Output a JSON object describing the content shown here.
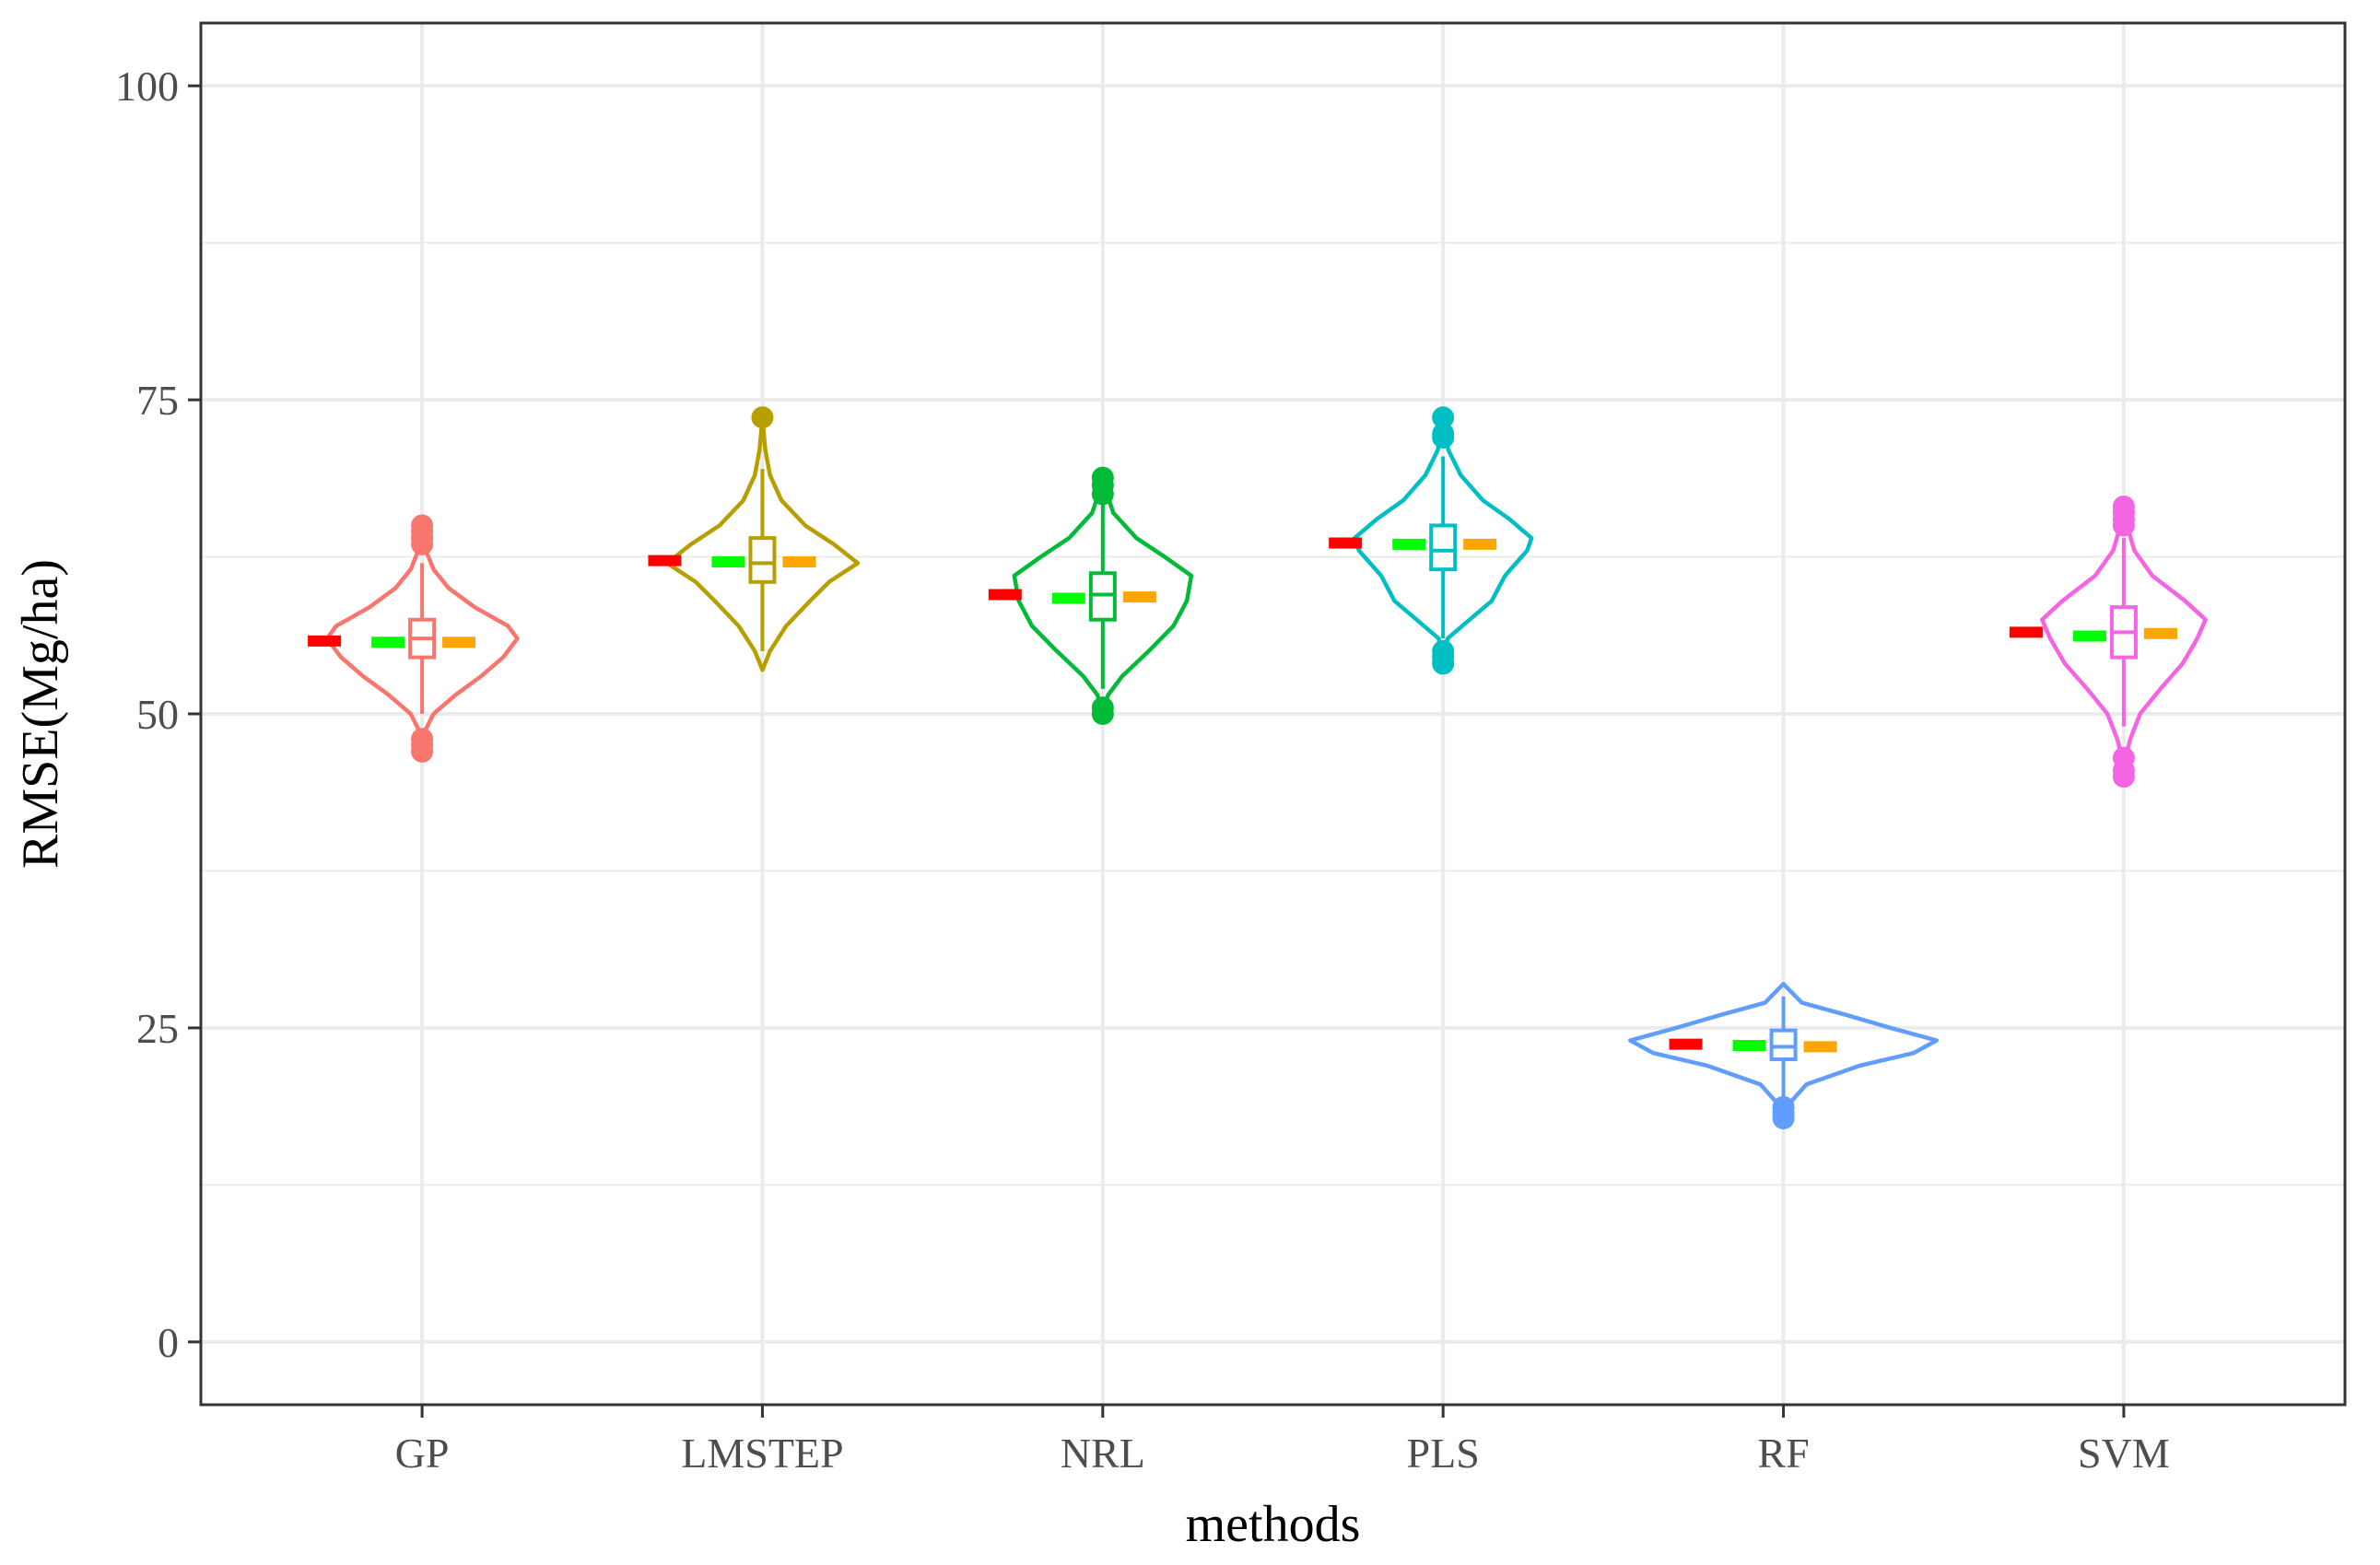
{
  "chart_data": {
    "type": "violin",
    "title": "",
    "xlabel": "methods",
    "ylabel": "RMSE(Mg/ha)",
    "ylim": [
      -5,
      105
    ],
    "yticks": [
      0,
      25,
      50,
      75,
      100
    ],
    "grid": true,
    "categories": [
      "GP",
      "LMSTEP",
      "NRL",
      "PLS",
      "RF",
      "SVM"
    ],
    "series": [
      {
        "name": "GP",
        "color": "#F8766D",
        "min": 47.3,
        "max": 64.8,
        "width": 0.28,
        "density": [
          [
            47.3,
            0
          ],
          [
            48.5,
            0.02
          ],
          [
            50,
            0.12
          ],
          [
            51.5,
            0.35
          ],
          [
            53,
            0.62
          ],
          [
            54.5,
            0.85
          ],
          [
            56,
            1.0
          ],
          [
            57,
            0.9
          ],
          [
            58.5,
            0.55
          ],
          [
            60,
            0.28
          ],
          [
            61.5,
            0.12
          ],
          [
            63,
            0.04
          ],
          [
            64.8,
            0
          ]
        ],
        "q1": 54.5,
        "median": 56.0,
        "q3": 57.5,
        "whisker_low": 50.0,
        "whisker_high": 62.0,
        "outliers": [
          47.0,
          47.5,
          48.0,
          63.5,
          64.0,
          64.5,
          65.0
        ],
        "mean": 55.7,
        "ref_red": 55.8,
        "ref_green": 55.7,
        "ref_orange": 55.7
      },
      {
        "name": "LMSTEP",
        "color": "#B79F00",
        "min": 53.5,
        "max": 73.5,
        "width": 0.28,
        "density": [
          [
            53.5,
            0
          ],
          [
            55,
            0.08
          ],
          [
            57,
            0.25
          ],
          [
            59,
            0.5
          ],
          [
            60.5,
            0.7
          ],
          [
            62,
            1.0
          ],
          [
            63.5,
            0.75
          ],
          [
            65,
            0.45
          ],
          [
            67,
            0.2
          ],
          [
            69,
            0.08
          ],
          [
            71,
            0.03
          ],
          [
            73.5,
            0
          ]
        ],
        "q1": 60.5,
        "median": 62.0,
        "q3": 64.0,
        "whisker_low": 55.0,
        "whisker_high": 69.5,
        "outliers": [
          73.6
        ],
        "mean": 62.1,
        "ref_red": 62.2,
        "ref_green": 62.1,
        "ref_orange": 62.1
      },
      {
        "name": "NRL",
        "color": "#00BA38",
        "min": 50.0,
        "max": 68.5,
        "width": 0.26,
        "density": [
          [
            50,
            0
          ],
          [
            51.5,
            0.06
          ],
          [
            53,
            0.22
          ],
          [
            55,
            0.52
          ],
          [
            57,
            0.8
          ],
          [
            59,
            0.95
          ],
          [
            61,
            1.0
          ],
          [
            62.5,
            0.7
          ],
          [
            64,
            0.38
          ],
          [
            66,
            0.12
          ],
          [
            68.5,
            0
          ]
        ],
        "q1": 57.5,
        "median": 59.5,
        "q3": 61.2,
        "whisker_low": 52.0,
        "whisker_high": 67.0,
        "outliers": [
          50.0,
          50.5,
          67.5,
          68.2,
          68.8
        ],
        "mean": 59.4,
        "ref_red": 59.5,
        "ref_green": 59.2,
        "ref_orange": 59.3
      },
      {
        "name": "PLS",
        "color": "#00BFC4",
        "min": 54.0,
        "max": 73.5,
        "width": 0.26,
        "density": [
          [
            54,
            0
          ],
          [
            56,
            0.05
          ],
          [
            57.5,
            0.3
          ],
          [
            59,
            0.55
          ],
          [
            61,
            0.7
          ],
          [
            63,
            0.95
          ],
          [
            64,
            1.0
          ],
          [
            65.5,
            0.75
          ],
          [
            67,
            0.45
          ],
          [
            69,
            0.2
          ],
          [
            71,
            0.06
          ],
          [
            73.5,
            0
          ]
        ],
        "q1": 61.5,
        "median": 63.0,
        "q3": 65.0,
        "whisker_low": 56.0,
        "whisker_high": 70.5,
        "outliers": [
          54.0,
          54.5,
          55.0,
          72.0,
          72.3,
          73.6
        ],
        "mean": 63.4,
        "ref_red": 63.6,
        "ref_green": 63.5,
        "ref_orange": 63.5
      },
      {
        "name": "RF",
        "color": "#619CFF",
        "min": 18.0,
        "max": 28.5,
        "width": 0.45,
        "density": [
          [
            18,
            0
          ],
          [
            19,
            0.04
          ],
          [
            20.5,
            0.15
          ],
          [
            22,
            0.5
          ],
          [
            23,
            0.85
          ],
          [
            24,
            1.0
          ],
          [
            25,
            0.7
          ],
          [
            26,
            0.42
          ],
          [
            27,
            0.12
          ],
          [
            28.5,
            0
          ]
        ],
        "q1": 22.5,
        "median": 23.5,
        "q3": 24.8,
        "whisker_low": 19.5,
        "whisker_high": 27.5,
        "outliers": [
          17.8,
          18.2,
          18.7
        ],
        "mean": 23.6,
        "ref_red": 23.7,
        "ref_green": 23.6,
        "ref_orange": 23.5
      },
      {
        "name": "SVM",
        "color": "#F564E3",
        "min": 45.0,
        "max": 66.5,
        "width": 0.24,
        "density": [
          [
            45,
            0
          ],
          [
            46.5,
            0.02
          ],
          [
            48,
            0.08
          ],
          [
            50,
            0.2
          ],
          [
            52,
            0.45
          ],
          [
            54,
            0.72
          ],
          [
            56,
            0.9
          ],
          [
            57.5,
            1.0
          ],
          [
            59,
            0.75
          ],
          [
            61,
            0.35
          ],
          [
            63,
            0.13
          ],
          [
            65,
            0.04
          ],
          [
            66.5,
            0
          ]
        ],
        "q1": 54.5,
        "median": 56.5,
        "q3": 58.5,
        "whisker_low": 49.0,
        "whisker_high": 64.0,
        "outliers": [
          45.0,
          45.5,
          46.5,
          65.0,
          65.5,
          66.0,
          66.5
        ],
        "mean": 56.3,
        "ref_red": 56.5,
        "ref_green": 56.2,
        "ref_orange": 56.4
      }
    ],
    "reference_marks": {
      "red": "#FF0000",
      "green": "#00FF00",
      "orange": "#FFA500"
    }
  }
}
